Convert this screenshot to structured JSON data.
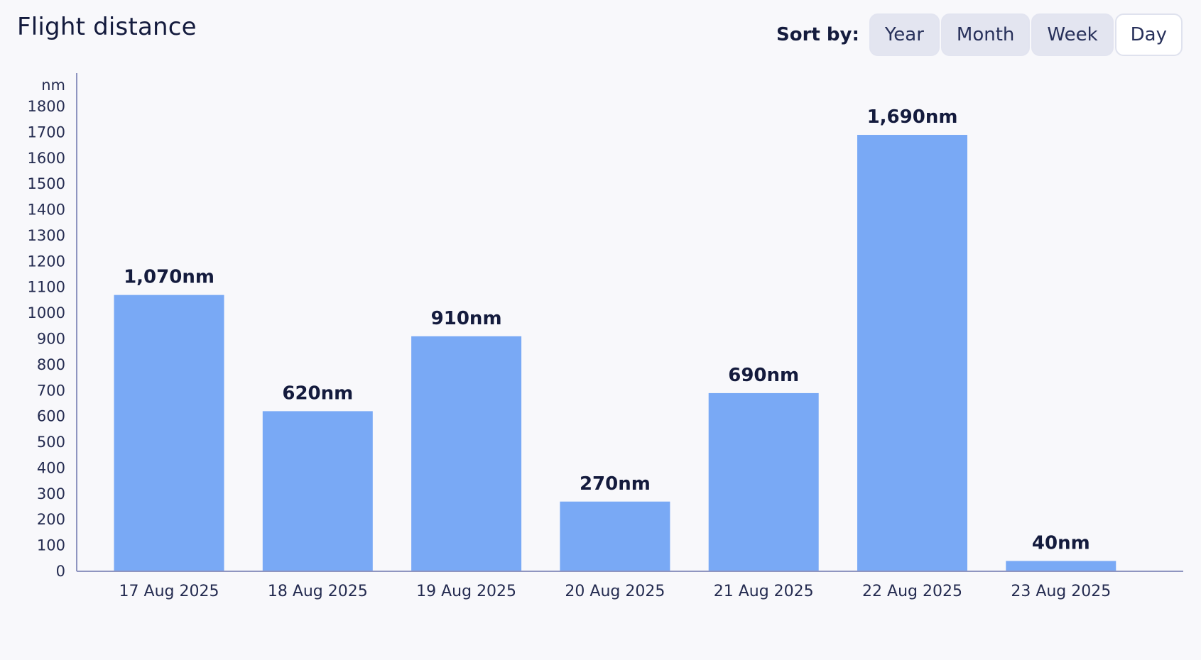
{
  "header": {
    "title": "Flight distance",
    "sort_label": "Sort by:",
    "sort_options": [
      {
        "label": "Year",
        "active": false
      },
      {
        "label": "Month",
        "active": false
      },
      {
        "label": "Week",
        "active": false
      },
      {
        "label": "Day",
        "active": true
      }
    ]
  },
  "colors": {
    "bar": "#79a9f5",
    "axis": "#8f95c0",
    "text": "#141b3d"
  },
  "chart_data": {
    "type": "bar",
    "title": "Flight distance",
    "xlabel": "",
    "ylabel": "nm",
    "ylim": [
      0,
      1800
    ],
    "yticks": [
      0,
      100,
      200,
      300,
      400,
      500,
      600,
      700,
      800,
      900,
      1000,
      1100,
      1200,
      1300,
      1400,
      1500,
      1600,
      1700,
      1800
    ],
    "categories": [
      "17 Aug 2025",
      "18 Aug 2025",
      "19 Aug 2025",
      "20 Aug 2025",
      "21 Aug 2025",
      "22 Aug 2025",
      "23 Aug 2025"
    ],
    "values": [
      1070,
      620,
      910,
      270,
      690,
      1690,
      40
    ],
    "data_labels": [
      "1,070nm",
      "620nm",
      "910nm",
      "270nm",
      "690nm",
      "1,690nm",
      "40nm"
    ],
    "grid": false,
    "legend": "none"
  }
}
